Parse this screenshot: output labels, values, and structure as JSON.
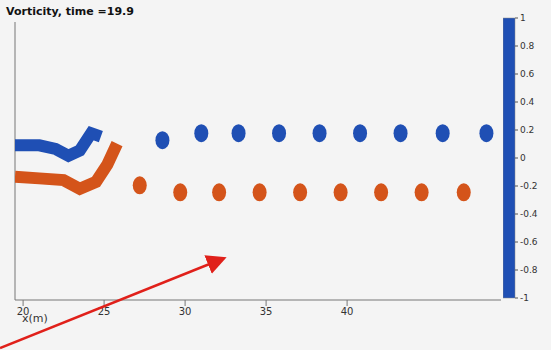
{
  "chart_data": {
    "type": "scatter",
    "title": "Vorticity, time =19.9",
    "x_label": "x(m)",
    "xlim": [
      19.5,
      49.5
    ],
    "xticks": [
      20,
      25,
      30,
      35,
      40
    ],
    "ylim": [
      -8,
      8
    ],
    "tick_labels": "x",
    "grid": false,
    "colorbar": {
      "range": [
        -1,
        1
      ],
      "ticks": [
        1,
        0.8,
        0.6,
        0.4,
        0.2,
        0,
        -0.2,
        -0.4,
        -0.6,
        -0.8,
        -1
      ],
      "colors": [
        "#1f4fb4",
        "#ffffff",
        "#d4541a"
      ]
    },
    "series": [
      {
        "type": "line",
        "vorticity": -1,
        "x": [
          19.5,
          21,
          22,
          22.8,
          23.5,
          24.2,
          24.8
        ],
        "y": [
          0.9,
          0.9,
          0.7,
          0.3,
          0.6,
          1.6,
          1.4
        ]
      },
      {
        "type": "line",
        "vorticity": 1,
        "x": [
          19.5,
          21,
          22.5,
          23.5,
          24.5,
          25.2,
          25.8
        ],
        "y": [
          -0.9,
          -1.0,
          -1.1,
          -1.6,
          -1.2,
          -0.2,
          1.0
        ]
      },
      {
        "type": "scatter",
        "marker": "ellipse",
        "vorticity": -1,
        "x": [
          28.6,
          31.0,
          33.3,
          35.8,
          38.3,
          40.8,
          43.3,
          45.9,
          48.6
        ],
        "y": [
          1.2,
          1.6,
          1.6,
          1.6,
          1.6,
          1.6,
          1.6,
          1.6,
          1.6
        ]
      },
      {
        "type": "scatter",
        "marker": "ellipse",
        "vorticity": 1,
        "x": [
          27.2,
          29.7,
          32.1,
          34.6,
          37.1,
          39.6,
          42.1,
          44.6,
          47.2
        ],
        "y": [
          -1.4,
          -1.8,
          -1.8,
          -1.8,
          -1.8,
          -1.8,
          -1.8,
          -1.8,
          -1.8
        ]
      }
    ]
  }
}
